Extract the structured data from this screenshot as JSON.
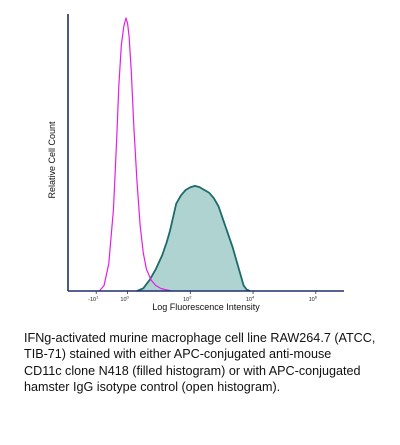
{
  "chart_data": {
    "type": "area",
    "title": "",
    "xlabel": "Log Fluorescence Intensity",
    "ylabel": "Relative Cell Count",
    "x_scale": "log",
    "ticks": [
      {
        "label": "-10",
        "sup": "1",
        "exp": -1
      },
      {
        "label": "10",
        "sup": "0",
        "exp": 0
      },
      {
        "label": "10",
        "sup": "2",
        "exp": 2
      },
      {
        "label": "10",
        "sup": "4",
        "exp": 4
      },
      {
        "label": "10",
        "sup": "6",
        "exp": 6
      }
    ],
    "xlim_exp": [
      -1.9,
      6.9
    ],
    "ylim": [
      0,
      1
    ],
    "grid": false,
    "series": [
      {
        "role": "filled",
        "stroke": "#1c6b6b",
        "fill": "#aed3d0",
        "points": [
          [
            0.3,
            0
          ],
          [
            0.5,
            0.01
          ],
          [
            0.7,
            0.04
          ],
          [
            0.9,
            0.08
          ],
          [
            1.1,
            0.13
          ],
          [
            1.25,
            0.18
          ],
          [
            1.35,
            0.22
          ],
          [
            1.45,
            0.27
          ],
          [
            1.55,
            0.32
          ],
          [
            1.7,
            0.35
          ],
          [
            1.85,
            0.37
          ],
          [
            2.0,
            0.38
          ],
          [
            2.15,
            0.385
          ],
          [
            2.3,
            0.38
          ],
          [
            2.45,
            0.37
          ],
          [
            2.6,
            0.36
          ],
          [
            2.75,
            0.34
          ],
          [
            2.9,
            0.31
          ],
          [
            3.05,
            0.26
          ],
          [
            3.2,
            0.21
          ],
          [
            3.35,
            0.16
          ],
          [
            3.5,
            0.1
          ],
          [
            3.6,
            0.06
          ],
          [
            3.7,
            0.02
          ],
          [
            3.8,
            0.005
          ],
          [
            3.9,
            0
          ]
        ]
      },
      {
        "role": "open",
        "stroke": "#e41ee6",
        "fill": "none",
        "points": [
          [
            -0.9,
            0
          ],
          [
            -0.75,
            0.02
          ],
          [
            -0.6,
            0.1
          ],
          [
            -0.45,
            0.3
          ],
          [
            -0.35,
            0.55
          ],
          [
            -0.28,
            0.75
          ],
          [
            -0.2,
            0.9
          ],
          [
            -0.12,
            0.97
          ],
          [
            -0.05,
            1.0
          ],
          [
            0.0,
            0.98
          ],
          [
            0.05,
            0.93
          ],
          [
            0.12,
            0.8
          ],
          [
            0.2,
            0.6
          ],
          [
            0.3,
            0.4
          ],
          [
            0.4,
            0.24
          ],
          [
            0.5,
            0.14
          ],
          [
            0.6,
            0.08
          ],
          [
            0.75,
            0.04
          ],
          [
            0.9,
            0.02
          ],
          [
            1.05,
            0.01
          ],
          [
            1.2,
            0.005
          ],
          [
            1.4,
            0
          ]
        ]
      }
    ]
  },
  "caption": {
    "lines": [
      "IFNg-activated murine macrophage cell line RAW264.7 (ATCC,",
      "TIB-71) stained with either APC-conjugated anti-mouse",
      "CD11c clone N418 (filled histogram) or with APC-conjugated",
      "hamster IgG isotype control (open histogram)."
    ]
  },
  "colors": {
    "axis": "#1f2f6e",
    "filled_stroke": "#1c6b6b",
    "filled_fill": "#aed3d0",
    "open_stroke": "#e41ee6"
  }
}
